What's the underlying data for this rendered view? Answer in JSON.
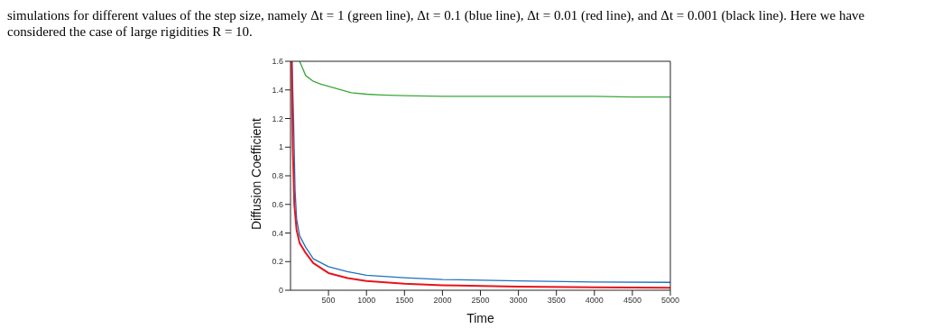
{
  "chart_data": {
    "type": "line",
    "xlabel": "Time",
    "ylabel": "Diffusion Coefficient",
    "annotations": [
      "simulations for different values of the step size, namely Δt = 1 (green line), Δt = 0.1 (blue line), Δt = 0.01 (red line), and Δt = 0.001 (black line). Here we have considered the case of large rigidities R = 10."
    ],
    "xlim": [
      0,
      5000
    ],
    "xticks": [
      500,
      1000,
      1500,
      2000,
      2500,
      3000,
      3500,
      4000,
      4500,
      5000
    ],
    "ylim": [
      0,
      1.6
    ],
    "yticks": [
      0,
      0.2,
      0.4,
      0.6,
      0.8,
      1,
      1.2,
      1.4,
      1.6
    ],
    "grid": false,
    "legend": false,
    "marker": "none",
    "line_style": "solid",
    "series": [
      {
        "color": "#3aa83a",
        "x": [
          120,
          200,
          300,
          400,
          600,
          800,
          1000,
          1200,
          1500,
          2000,
          2500,
          3000,
          3500,
          4000,
          4500,
          5000
        ],
        "values": [
          1.6,
          1.5,
          1.46,
          1.44,
          1.41,
          1.38,
          1.37,
          1.365,
          1.36,
          1.355,
          1.355,
          1.355,
          1.355,
          1.355,
          1.35,
          1.35
        ]
      },
      {
        "color": "#1f6fc0",
        "x": [
          20,
          40,
          60,
          80,
          120,
          200,
          300,
          500,
          750,
          1000,
          1500,
          2000,
          3000,
          4000,
          5000
        ],
        "values": [
          1.6,
          1.2,
          0.7,
          0.5,
          0.38,
          0.3,
          0.22,
          0.165,
          0.13,
          0.105,
          0.088,
          0.075,
          0.065,
          0.058,
          0.055
        ]
      },
      {
        "color": "#e8141c",
        "x": [
          15,
          30,
          50,
          80,
          120,
          200,
          300,
          500,
          750,
          1000,
          1500,
          2000,
          3000,
          4000,
          5000
        ],
        "values": [
          1.6,
          1.0,
          0.6,
          0.42,
          0.33,
          0.26,
          0.19,
          0.12,
          0.085,
          0.065,
          0.045,
          0.035,
          0.025,
          0.02,
          0.018
        ]
      }
    ]
  }
}
